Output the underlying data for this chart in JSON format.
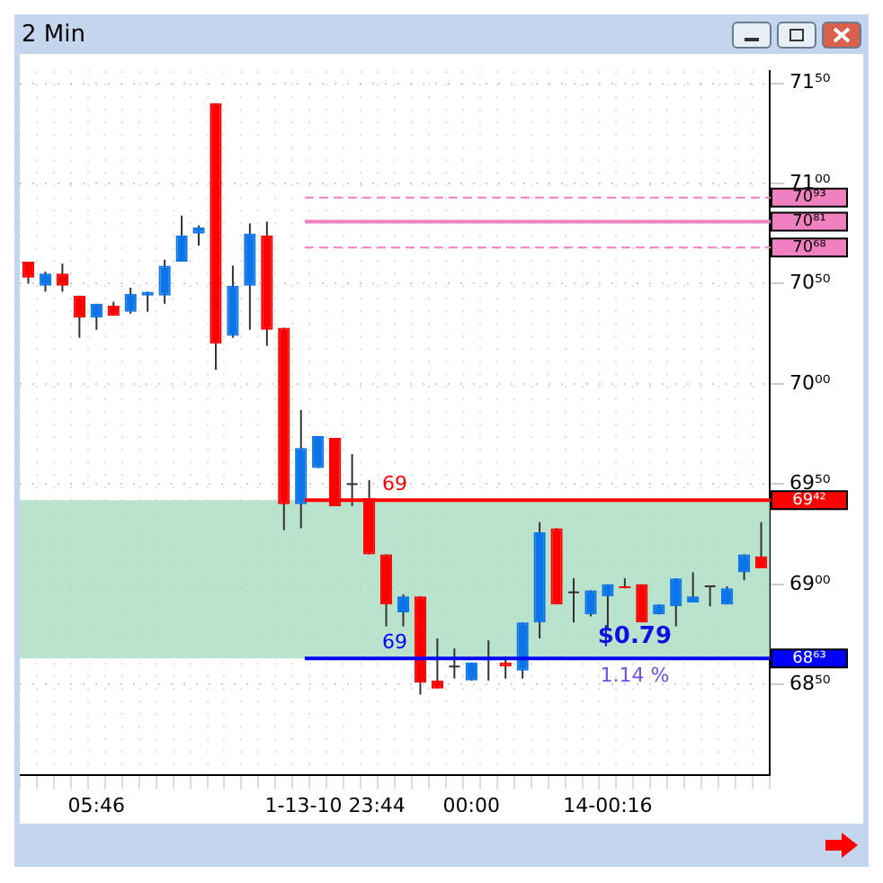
{
  "chart_data": {
    "type": "candlestick",
    "title": "2 Min",
    "categories": [
      null,
      null,
      null,
      null,
      "05:46",
      null,
      null,
      null,
      null,
      null,
      null,
      null,
      null,
      null,
      null,
      null,
      null,
      null,
      "1-13-10 23:44",
      null,
      null,
      null,
      null,
      null,
      null,
      null,
      "00:00",
      null,
      null,
      null,
      null,
      null,
      null,
      null,
      "14-00:16",
      null,
      null,
      null,
      null,
      null,
      null,
      null,
      null,
      null
    ],
    "ohlc": [
      [
        70.61,
        70.61,
        70.5,
        70.53
      ],
      [
        70.49,
        70.56,
        70.46,
        70.55
      ],
      [
        70.55,
        70.6,
        70.46,
        70.49
      ],
      [
        70.44,
        70.44,
        70.23,
        70.33
      ],
      [
        70.33,
        70.4,
        70.27,
        70.4
      ],
      [
        70.39,
        70.41,
        70.34,
        70.34
      ],
      [
        70.36,
        70.48,
        70.35,
        70.45
      ],
      [
        70.44,
        70.46,
        70.36,
        70.46
      ],
      [
        70.44,
        70.62,
        70.4,
        70.59
      ],
      [
        70.61,
        70.84,
        70.61,
        70.74
      ],
      [
        70.75,
        70.79,
        70.69,
        70.78
      ],
      [
        71.4,
        71.4,
        70.07,
        70.2
      ],
      [
        70.24,
        70.59,
        70.23,
        70.49
      ],
      [
        70.49,
        70.8,
        70.27,
        70.75
      ],
      [
        70.74,
        70.81,
        70.19,
        70.27
      ],
      [
        70.28,
        70.28,
        69.27,
        69.4
      ],
      [
        69.4,
        69.87,
        69.28,
        69.68
      ],
      [
        69.58,
        69.74,
        69.58,
        69.74
      ],
      [
        69.73,
        69.73,
        69.39,
        69.39
      ],
      [
        69.5,
        69.65,
        69.39,
        69.5
      ],
      [
        69.43,
        69.52,
        69.15,
        69.15
      ],
      [
        69.15,
        69.15,
        68.79,
        68.9
      ],
      [
        68.86,
        68.95,
        68.79,
        68.94
      ],
      [
        68.94,
        68.94,
        68.45,
        68.51
      ],
      [
        68.52,
        68.73,
        68.48,
        68.48
      ],
      [
        68.59,
        68.68,
        68.53,
        68.59
      ],
      [
        68.52,
        68.61,
        68.52,
        68.61
      ],
      [
        68.62,
        68.72,
        68.52,
        68.63
      ],
      [
        68.61,
        68.64,
        68.53,
        68.59
      ],
      [
        68.57,
        68.81,
        68.53,
        68.81
      ],
      [
        68.81,
        69.31,
        68.73,
        69.26
      ],
      [
        69.28,
        69.28,
        68.9,
        68.9
      ],
      [
        68.96,
        69.03,
        68.81,
        68.96
      ],
      [
        68.85,
        68.97,
        68.84,
        68.97
      ],
      [
        68.94,
        69.0,
        68.77,
        69.0
      ],
      [
        68.99,
        69.03,
        68.98,
        68.98
      ],
      [
        69.0,
        69.0,
        68.81,
        68.81
      ],
      [
        68.85,
        68.9,
        68.85,
        68.9
      ],
      [
        68.89,
        69.03,
        68.79,
        69.03
      ],
      [
        68.91,
        69.06,
        68.91,
        68.94
      ],
      [
        68.99,
        68.99,
        68.89,
        68.99
      ],
      [
        68.9,
        68.99,
        68.9,
        68.98
      ],
      [
        69.06,
        69.15,
        69.02,
        69.15
      ],
      [
        69.14,
        69.31,
        69.08,
        69.08
      ]
    ],
    "colors": [
      "#ff0000",
      "#0a74e8",
      "#ff0000",
      "#ff0000",
      "#0a74e8",
      "#ff0000",
      "#0a74e8",
      "#0a74e8",
      "#0a74e8",
      "#0a74e8",
      "#0a74e8",
      "#ff0000",
      "#0a74e8",
      "#0a74e8",
      "#ff0000",
      "#ff0000",
      "#0a74e8",
      "#0a74e8",
      "#ff0000",
      "#333333",
      "#ff0000",
      "#ff0000",
      "#0a74e8",
      "#ff0000",
      "#ff0000",
      "#333333",
      "#0a74e8",
      "#0a74e8",
      "#ff0000",
      "#0a74e8",
      "#0a74e8",
      "#ff0000",
      "#333333",
      "#0a74e8",
      "#0a74e8",
      "#ff0000",
      "#ff0000",
      "#0a74e8",
      "#0a74e8",
      "#0a74e8",
      "#333333",
      "#0a74e8",
      "#0a74e8",
      "#ff0000"
    ],
    "ylim": [
      68.05,
      71.56
    ],
    "yticks": [
      {
        "value": 68.5,
        "label": "68⁵⁰"
      },
      {
        "value": 69,
        "label": "69⁰⁰"
      },
      {
        "value": 69.5,
        "label": "69⁵⁰"
      },
      {
        "value": 70,
        "label": "70⁰⁰"
      },
      {
        "value": 70.5,
        "label": "70⁵⁰"
      },
      {
        "value": 71,
        "label": "71⁰⁰"
      },
      {
        "value": 71.5,
        "label": "71⁵⁰"
      }
    ],
    "ref_lines": [
      {
        "axis": "y",
        "value": 70.93,
        "color": "#f080c0",
        "line_style": "dashed",
        "label": "70⁹³"
      },
      {
        "axis": "y",
        "value": 70.81,
        "color": "#f080c0",
        "line_style": "solid",
        "label": "70⁸¹"
      },
      {
        "axis": "y",
        "value": 70.68,
        "color": "#f080c0",
        "line_style": "dashed",
        "label": "70⁶⁸"
      },
      {
        "axis": "y",
        "value": 69.42,
        "color": "#ff0000",
        "line_style": "solid",
        "label": "69⁴²"
      },
      {
        "axis": "y",
        "value": 68.63,
        "color": "#0000ff",
        "line_style": "solid",
        "label": "68⁶³"
      }
    ],
    "bands": [
      {
        "axis": "y",
        "from": 68.63,
        "to": 69.42,
        "color": "#a8dcc0"
      }
    ],
    "annotations": [
      {
        "text": "69",
        "y": 69.42
      },
      {
        "text": "69",
        "y": 68.63
      },
      "$0.79",
      "1.14 %"
    ],
    "grid": true,
    "legend": false
  }
}
